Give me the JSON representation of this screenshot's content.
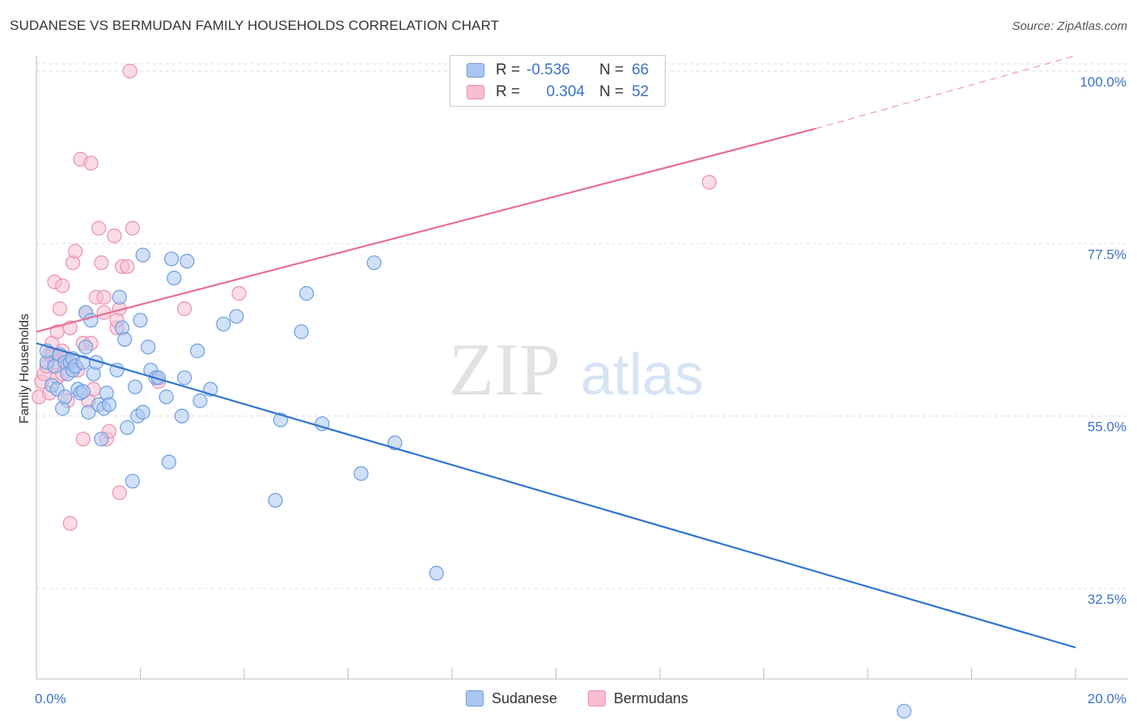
{
  "header": {
    "title": "SUDANESE VS BERMUDAN FAMILY HOUSEHOLDS CORRELATION CHART",
    "source": "Source: ZipAtlas.com"
  },
  "watermark": {
    "zip": "ZIP",
    "atlas": "atlas"
  },
  "legend": {
    "rows": [
      {
        "r_label": "R =",
        "r_value": "-0.536",
        "n_label": "N =",
        "n_value": "66"
      },
      {
        "r_label": "R =",
        "r_value": "0.304",
        "n_label": "N =",
        "n_value": "52"
      }
    ],
    "bottom": [
      "Sudanese",
      "Bermudans"
    ]
  },
  "chart_data": {
    "type": "scatter",
    "title": "SUDANESE VS BERMUDAN FAMILY HOUSEHOLDS CORRELATION CHART",
    "xlabel": "",
    "ylabel": "Family Households",
    "xlim": [
      0,
      20
    ],
    "ylim": [
      20.7,
      102
    ],
    "x_tick_labels": [
      "0.0%",
      "20.0%"
    ],
    "y_ticks": [
      32.5,
      55.0,
      77.5,
      100.0
    ],
    "y_tick_labels": [
      "32.5%",
      "55.0%",
      "77.5%",
      "100.0%"
    ],
    "grid": "horizontal dashed",
    "colors": {
      "sudanese_fill": "#aac6f0",
      "sudanese_stroke": "#6d9ee0",
      "sudanese_line": "#2f74cf",
      "bermudan_fill": "#f8bdd0",
      "bermudan_stroke": "#ec8fae",
      "bermudan_line": "#e86d96"
    },
    "series": [
      {
        "name": "Sudanese",
        "r": -0.536,
        "n": 66,
        "trend": {
          "x0": 0,
          "y0": 64.5,
          "x1": 20,
          "y1": 24.8
        },
        "points": [
          [
            0.2,
            62.0
          ],
          [
            0.2,
            63.5
          ],
          [
            0.3,
            59.0
          ],
          [
            0.35,
            61.5
          ],
          [
            0.4,
            58.5
          ],
          [
            0.45,
            63.0
          ],
          [
            0.5,
            56.0
          ],
          [
            0.55,
            62.0
          ],
          [
            0.6,
            60.5
          ],
          [
            0.65,
            62.0
          ],
          [
            0.7,
            62.5
          ],
          [
            0.7,
            61.0
          ],
          [
            0.75,
            61.5
          ],
          [
            0.8,
            58.5
          ],
          [
            0.85,
            58.0
          ],
          [
            0.9,
            58.2
          ],
          [
            0.9,
            62.0
          ],
          [
            0.95,
            64.0
          ],
          [
            0.95,
            68.5
          ],
          [
            1.0,
            55.5
          ],
          [
            1.05,
            67.5
          ],
          [
            1.1,
            60.5
          ],
          [
            1.15,
            62.0
          ],
          [
            1.2,
            56.5
          ],
          [
            1.25,
            52.0
          ],
          [
            1.3,
            56.0
          ],
          [
            1.35,
            58.0
          ],
          [
            1.4,
            56.5
          ],
          [
            1.55,
            61.0
          ],
          [
            1.65,
            66.5
          ],
          [
            1.7,
            65.0
          ],
          [
            1.75,
            53.5
          ],
          [
            1.85,
            46.5
          ],
          [
            1.9,
            58.8
          ],
          [
            1.95,
            55.0
          ],
          [
            2.0,
            67.5
          ],
          [
            2.05,
            55.5
          ],
          [
            2.05,
            76.0
          ],
          [
            2.15,
            64.0
          ],
          [
            2.2,
            61.0
          ],
          [
            2.3,
            60.0
          ],
          [
            2.35,
            60.0
          ],
          [
            2.5,
            57.5
          ],
          [
            2.55,
            49.0
          ],
          [
            2.6,
            75.5
          ],
          [
            2.65,
            73.0
          ],
          [
            2.8,
            55.0
          ],
          [
            2.85,
            60.0
          ],
          [
            2.9,
            75.2
          ],
          [
            3.1,
            63.5
          ],
          [
            3.15,
            57.0
          ],
          [
            3.35,
            58.5
          ],
          [
            3.6,
            67.0
          ],
          [
            3.85,
            68.0
          ],
          [
            4.6,
            44.0
          ],
          [
            4.7,
            54.5
          ],
          [
            5.1,
            66.0
          ],
          [
            5.2,
            71.0
          ],
          [
            5.5,
            54.0
          ],
          [
            6.25,
            47.5
          ],
          [
            6.5,
            75.0
          ],
          [
            6.9,
            51.5
          ],
          [
            7.7,
            34.5
          ],
          [
            16.7,
            16.5
          ],
          [
            1.6,
            70.5
          ],
          [
            0.55,
            57.5
          ]
        ]
      },
      {
        "name": "Bermudans",
        "r": 0.304,
        "n": 52,
        "trend": {
          "x0": 0,
          "y0": 66.0,
          "x1": 15.0,
          "y1": 92.5,
          "dashed_to": {
            "x": 20,
            "y": 102.0
          }
        },
        "points": [
          [
            0.05,
            57.5
          ],
          [
            0.1,
            59.5
          ],
          [
            0.15,
            60.5
          ],
          [
            0.2,
            61.5
          ],
          [
            0.25,
            58.0
          ],
          [
            0.25,
            63.0
          ],
          [
            0.3,
            64.5
          ],
          [
            0.35,
            62.0
          ],
          [
            0.35,
            72.5
          ],
          [
            0.4,
            66.0
          ],
          [
            0.4,
            60.0
          ],
          [
            0.45,
            69.0
          ],
          [
            0.5,
            63.5
          ],
          [
            0.5,
            72.0
          ],
          [
            0.55,
            62.5
          ],
          [
            0.6,
            57.0
          ],
          [
            0.6,
            62.0
          ],
          [
            0.65,
            66.5
          ],
          [
            0.65,
            41.0
          ],
          [
            0.7,
            75.0
          ],
          [
            0.75,
            76.5
          ],
          [
            0.8,
            61.0
          ],
          [
            0.85,
            88.5
          ],
          [
            0.9,
            64.5
          ],
          [
            0.9,
            52.0
          ],
          [
            0.95,
            68.5
          ],
          [
            1.0,
            57.0
          ],
          [
            1.05,
            88.0
          ],
          [
            1.05,
            64.5
          ],
          [
            1.1,
            58.5
          ],
          [
            1.15,
            70.5
          ],
          [
            1.2,
            79.5
          ],
          [
            1.25,
            75.0
          ],
          [
            1.3,
            68.5
          ],
          [
            1.3,
            70.5
          ],
          [
            1.35,
            52.0
          ],
          [
            1.4,
            53.0
          ],
          [
            1.5,
            78.5
          ],
          [
            1.55,
            66.5
          ],
          [
            1.6,
            45.0
          ],
          [
            1.6,
            69.0
          ],
          [
            1.65,
            74.5
          ],
          [
            1.55,
            67.5
          ],
          [
            1.8,
            100.0
          ],
          [
            1.85,
            79.5
          ],
          [
            1.75,
            74.5
          ],
          [
            2.35,
            59.5
          ],
          [
            2.85,
            69.0
          ],
          [
            3.9,
            71.0
          ],
          [
            12.95,
            85.5
          ],
          [
            0.3,
            63.0
          ],
          [
            0.5,
            60.5
          ]
        ]
      }
    ]
  }
}
